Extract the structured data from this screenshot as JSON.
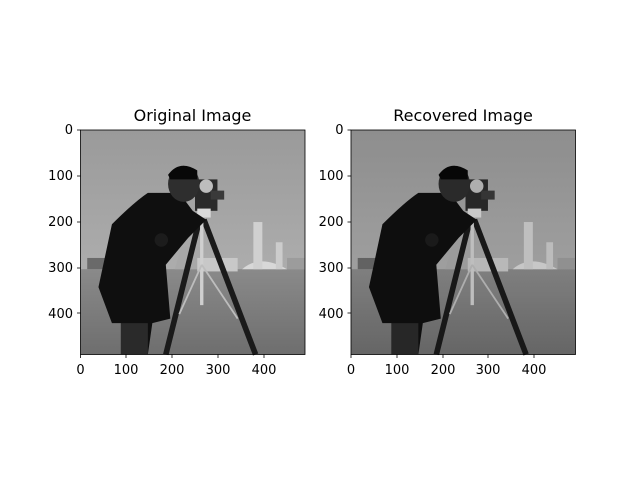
{
  "figure": {
    "background": "#ffffff"
  },
  "chart_data": [
    {
      "type": "heatmap",
      "title": "Original Image",
      "colormap": "gray",
      "xlim": [
        0,
        490
      ],
      "ylim": [
        490,
        0
      ],
      "xticks": [
        0,
        100,
        200,
        300,
        400
      ],
      "yticks": [
        0,
        100,
        200,
        300,
        400
      ],
      "image_description": "grayscale photograph of a cameraman with a camera on a tripod"
    },
    {
      "type": "heatmap",
      "title": "Recovered Image",
      "colormap": "gray",
      "xlim": [
        0,
        490
      ],
      "ylim": [
        490,
        0
      ],
      "xticks": [
        0,
        100,
        200,
        300,
        400
      ],
      "yticks": [
        0,
        100,
        200,
        300,
        400
      ],
      "image_description": "grayscale photograph of a cameraman with a camera on a tripod"
    }
  ]
}
